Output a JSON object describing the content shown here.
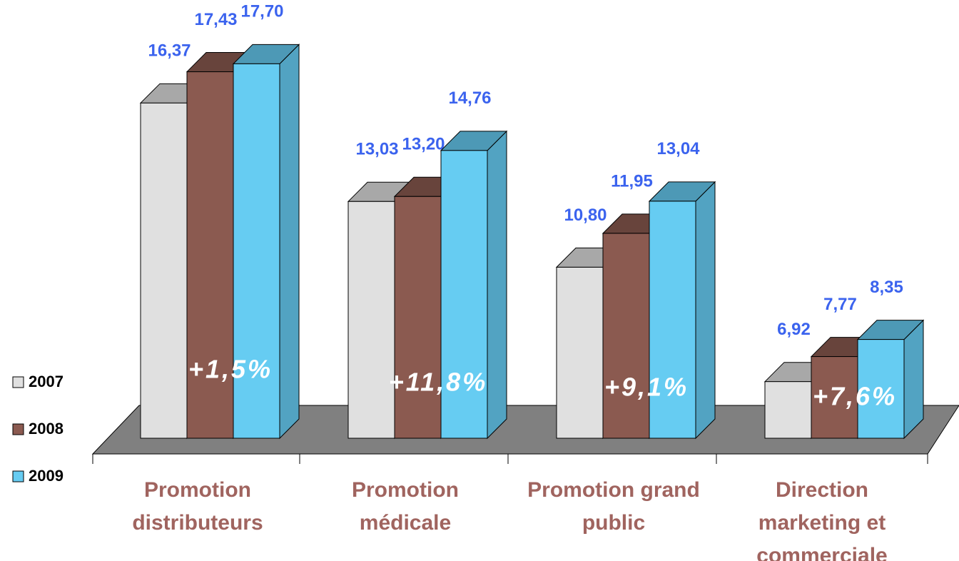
{
  "chart_data": {
    "type": "bar3d",
    "categories": [
      "Promotion distributeurs",
      "Promotion médicale",
      "Promotion grand public",
      "Direction marketing et commerciale"
    ],
    "series": [
      {
        "name": "2007",
        "color": "#e0e0e0",
        "values": [
          16.37,
          13.03,
          10.8,
          6.92
        ],
        "value_labels": [
          "16,37",
          "13,03",
          "10,80",
          "6,92"
        ]
      },
      {
        "name": "2008",
        "color": "#8b5a50",
        "values": [
          17.43,
          13.2,
          11.95,
          7.77
        ],
        "value_labels": [
          "17,43",
          "13,20",
          "11,95",
          "7,77"
        ]
      },
      {
        "name": "2009",
        "color": "#66ccf2",
        "values": [
          17.7,
          14.76,
          13.04,
          8.35
        ],
        "value_labels": [
          "17,70",
          "14,76",
          "13,04",
          "8,35"
        ]
      }
    ],
    "annotations": [
      "+1,5%",
      "+11,8%",
      "+9,1%",
      "+7,6%"
    ],
    "ylim": [
      5,
      18
    ],
    "legend": "left"
  }
}
